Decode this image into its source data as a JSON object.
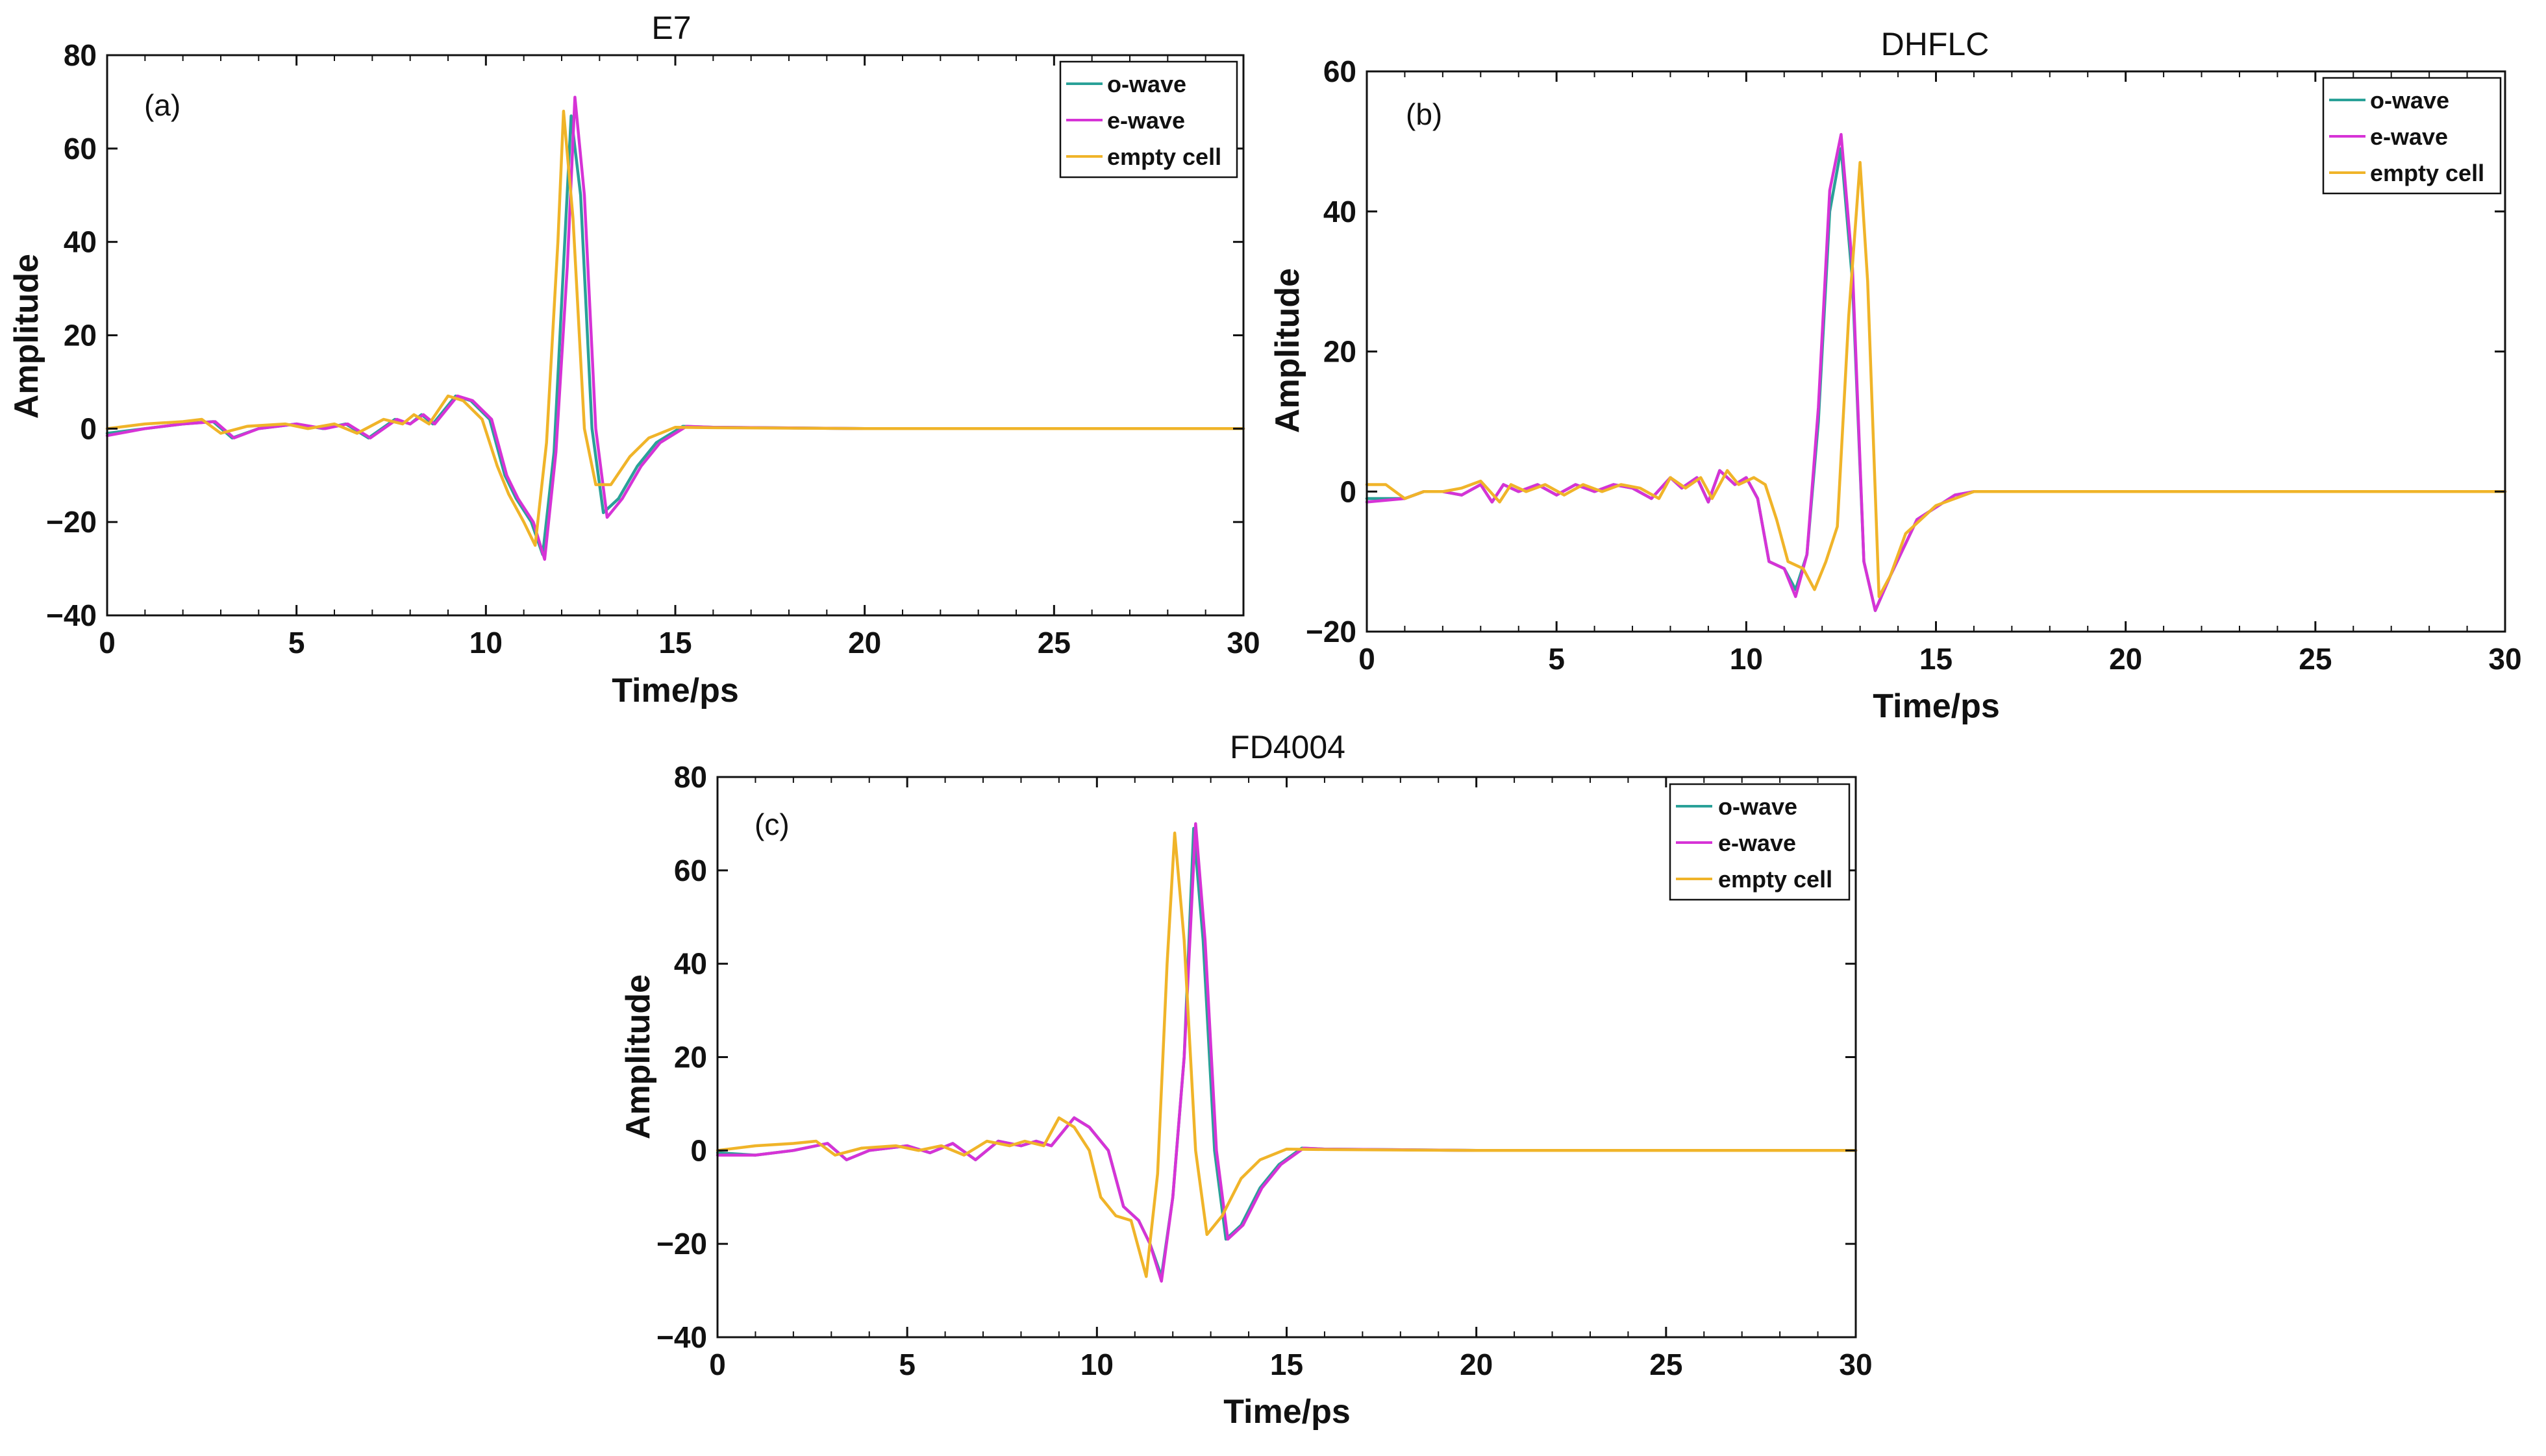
{
  "chart_data": [
    {
      "type": "line",
      "panel_label": "(a)",
      "title": "E7",
      "xlabel": "Time/ps",
      "ylabel": "Amplitude",
      "xlim": [
        0,
        30
      ],
      "ylim": [
        -40,
        80
      ],
      "xticks": [
        0,
        5,
        10,
        15,
        20,
        25,
        30
      ],
      "yticks": [
        -40,
        -20,
        0,
        20,
        40,
        60,
        80
      ],
      "xtick_labels": [
        "0",
        "5",
        "10",
        "15",
        "20",
        "25",
        "30"
      ],
      "ytick_labels": [
        "−40",
        "−20",
        "0",
        "20",
        "40",
        "60",
        "80"
      ],
      "legend_position": "top-right",
      "series": [
        {
          "name": "o-wave",
          "color": "#2aa198",
          "x": [
            0,
            1,
            2,
            2.8,
            3.3,
            4,
            5,
            5.7,
            6.3,
            6.9,
            7.6,
            8,
            8.3,
            8.6,
            9.2,
            9.6,
            10.1,
            10.5,
            10.8,
            11.2,
            11.5,
            11.8,
            12.05,
            12.25,
            12.5,
            12.8,
            13.1,
            13.5,
            14,
            14.5,
            15.2,
            16,
            20,
            25,
            30
          ],
          "y": [
            -1,
            0,
            1,
            1.5,
            -2,
            0,
            1,
            0,
            1,
            -2,
            2,
            1,
            3,
            1,
            7,
            6,
            2,
            -10,
            -15,
            -20,
            -27,
            -5,
            35,
            67,
            50,
            0,
            -18,
            -15,
            -8,
            -3,
            0.5,
            0.3,
            0,
            0,
            0
          ]
        },
        {
          "name": "e-wave",
          "color": "#d633d6",
          "x": [
            0,
            1,
            2,
            2.85,
            3.35,
            4,
            5,
            5.75,
            6.35,
            6.95,
            7.65,
            8,
            8.35,
            8.65,
            9.25,
            9.65,
            10.15,
            10.55,
            10.85,
            11.25,
            11.55,
            11.85,
            12.15,
            12.35,
            12.6,
            12.9,
            13.2,
            13.6,
            14.1,
            14.6,
            15.3,
            16,
            20,
            25,
            30
          ],
          "y": [
            -1.5,
            0,
            1,
            1.5,
            -2,
            0,
            1,
            0,
            1,
            -2,
            2,
            1,
            3,
            1,
            7,
            6,
            2,
            -10,
            -15,
            -20,
            -28,
            -5,
            35,
            71,
            50,
            0,
            -19,
            -15,
            -8,
            -3,
            0.5,
            0.3,
            0,
            0,
            0
          ]
        },
        {
          "name": "empty cell",
          "color": "#f0b429",
          "x": [
            0,
            1,
            2,
            2.5,
            3,
            3.7,
            4.7,
            5.3,
            6,
            6.6,
            7.3,
            7.8,
            8.1,
            8.5,
            9,
            9.4,
            9.9,
            10.3,
            10.6,
            11,
            11.3,
            11.6,
            11.9,
            12.05,
            12.3,
            12.6,
            12.9,
            13.3,
            13.8,
            14.3,
            15,
            16,
            20,
            25,
            30
          ],
          "y": [
            0,
            1,
            1.5,
            2,
            -1,
            0.5,
            1,
            0,
            1,
            -1,
            2,
            1,
            3,
            1,
            7,
            6,
            2,
            -8,
            -14,
            -20,
            -25,
            -3,
            40,
            68,
            45,
            0,
            -12,
            -12,
            -6,
            -2,
            0.3,
            0.2,
            0,
            0,
            0
          ]
        }
      ]
    },
    {
      "type": "line",
      "panel_label": "(b)",
      "title": "DHFLC",
      "xlabel": "Time/ps",
      "ylabel": "Amplitude",
      "xlim": [
        0,
        30
      ],
      "ylim": [
        -20,
        60
      ],
      "xticks": [
        0,
        5,
        10,
        15,
        20,
        25,
        30
      ],
      "yticks": [
        -20,
        0,
        20,
        40,
        60
      ],
      "xtick_labels": [
        "0",
        "5",
        "10",
        "15",
        "20",
        "25",
        "30"
      ],
      "ytick_labels": [
        "−20",
        "0",
        "20",
        "40",
        "60"
      ],
      "legend_position": "top-right",
      "series": [
        {
          "name": "o-wave",
          "color": "#2aa198",
          "x": [
            0,
            1,
            1.5,
            2,
            2.5,
            3,
            3.3,
            3.6,
            4,
            4.5,
            5,
            5.5,
            6,
            6.5,
            7,
            7.5,
            8,
            8.3,
            8.7,
            9,
            9.3,
            9.7,
            10,
            10.3,
            10.6,
            11,
            11.3,
            11.6,
            11.9,
            12.2,
            12.5,
            12.8,
            13.1,
            13.4,
            13.8,
            14.5,
            15.5,
            16,
            20,
            25,
            30
          ],
          "y": [
            -1,
            -1,
            0,
            0,
            -0.5,
            1,
            -1.5,
            1,
            0,
            1,
            -0.5,
            1,
            0,
            1,
            0.5,
            -1,
            2,
            0.5,
            2,
            -1.5,
            3,
            1,
            2,
            -1,
            -10,
            -11,
            -14,
            -9,
            10,
            40,
            49,
            30,
            -10,
            -17,
            -12,
            -4,
            -0.5,
            0,
            0,
            0,
            0
          ]
        },
        {
          "name": "e-wave",
          "color": "#d633d6",
          "x": [
            0,
            1,
            1.5,
            2,
            2.5,
            3,
            3.3,
            3.6,
            4,
            4.5,
            5,
            5.5,
            6,
            6.5,
            7,
            7.5,
            8,
            8.3,
            8.7,
            9,
            9.3,
            9.7,
            10,
            10.3,
            10.6,
            11,
            11.3,
            11.6,
            11.9,
            12.2,
            12.5,
            12.8,
            13.1,
            13.4,
            13.8,
            14.5,
            15.5,
            16,
            20,
            25,
            30
          ],
          "y": [
            -1.5,
            -1,
            0,
            0,
            -0.5,
            1,
            -1.5,
            1,
            0,
            1,
            -0.5,
            1,
            0,
            1,
            0.5,
            -1,
            2,
            0.5,
            2,
            -1.5,
            3,
            1,
            2,
            -1,
            -10,
            -11,
            -15,
            -9,
            12,
            43,
            51,
            32,
            -10,
            -17,
            -12,
            -4,
            -0.5,
            0,
            0,
            0,
            0
          ]
        },
        {
          "name": "empty cell",
          "color": "#f0b429",
          "x": [
            0,
            0.5,
            1,
            1.5,
            2,
            2.5,
            3,
            3.5,
            3.8,
            4.2,
            4.7,
            5.2,
            5.7,
            6.2,
            6.7,
            7.2,
            7.7,
            8,
            8.4,
            8.8,
            9.1,
            9.5,
            9.8,
            10.2,
            10.5,
            10.8,
            11.1,
            11.5,
            11.8,
            12.1,
            12.4,
            12.7,
            13,
            13.2,
            13.5,
            13.8,
            14.2,
            15,
            16,
            20,
            25,
            30
          ],
          "y": [
            1,
            1,
            -1,
            0,
            0,
            0.5,
            1.5,
            -1.5,
            1,
            0,
            1,
            -0.5,
            1,
            0,
            1,
            0.5,
            -1,
            2,
            0.5,
            2,
            -1,
            3,
            1,
            2,
            1,
            -4,
            -10,
            -11,
            -14,
            -10,
            -5,
            25,
            47,
            30,
            -15,
            -12,
            -6,
            -2,
            0,
            0,
            0,
            0
          ]
        }
      ]
    },
    {
      "type": "line",
      "panel_label": "(c)",
      "title": "FD4004",
      "xlabel": "Time/ps",
      "ylabel": "Amplitude",
      "xlim": [
        0,
        30
      ],
      "ylim": [
        -40,
        80
      ],
      "xticks": [
        0,
        5,
        10,
        15,
        20,
        25,
        30
      ],
      "yticks": [
        -40,
        -20,
        0,
        20,
        40,
        60,
        80
      ],
      "xtick_labels": [
        "0",
        "5",
        "10",
        "15",
        "20",
        "25",
        "30"
      ],
      "ytick_labels": [
        "−40",
        "−20",
        "0",
        "20",
        "40",
        "60",
        "80"
      ],
      "legend_position": "top-right",
      "series": [
        {
          "name": "o-wave",
          "color": "#2aa198",
          "x": [
            0,
            1,
            2,
            2.9,
            3.4,
            4,
            5,
            5.6,
            6.2,
            6.8,
            7.4,
            8,
            8.4,
            8.8,
            9.4,
            9.8,
            10.3,
            10.7,
            11.1,
            11.4,
            11.7,
            12,
            12.3,
            12.55,
            12.8,
            13.1,
            13.4,
            13.8,
            14.3,
            14.8,
            15.4,
            16,
            20,
            25,
            30
          ],
          "y": [
            -0.5,
            -1,
            0,
            1.5,
            -2,
            0,
            1,
            -0.5,
            1.5,
            -2,
            2,
            1,
            2,
            1,
            7,
            5,
            0,
            -12,
            -15,
            -20,
            -27,
            -10,
            20,
            69,
            45,
            0,
            -19,
            -16,
            -8,
            -3,
            0.5,
            0.3,
            0,
            0,
            0
          ]
        },
        {
          "name": "e-wave",
          "color": "#d633d6",
          "x": [
            0,
            1,
            2,
            2.9,
            3.4,
            4,
            5,
            5.6,
            6.2,
            6.8,
            7.4,
            8,
            8.4,
            8.8,
            9.4,
            9.8,
            10.3,
            10.7,
            11.1,
            11.4,
            11.7,
            12,
            12.3,
            12.6,
            12.85,
            13.15,
            13.45,
            13.85,
            14.35,
            14.85,
            15.45,
            16,
            20,
            25,
            30
          ],
          "y": [
            -1,
            -1,
            0,
            1.5,
            -2,
            0,
            1,
            -0.5,
            1.5,
            -2,
            2,
            1,
            2,
            1,
            7,
            5,
            0,
            -12,
            -15,
            -20,
            -28,
            -10,
            20,
            70,
            45,
            0,
            -19,
            -16,
            -8,
            -3,
            0.5,
            0.3,
            0,
            0,
            0
          ]
        },
        {
          "name": "empty cell",
          "color": "#f0b429",
          "x": [
            0,
            1,
            2,
            2.6,
            3.1,
            3.8,
            4.7,
            5.3,
            5.9,
            6.5,
            7.1,
            7.7,
            8.1,
            8.6,
            9,
            9.4,
            9.8,
            10.1,
            10.5,
            10.9,
            11.3,
            11.6,
            11.85,
            12.05,
            12.3,
            12.6,
            12.9,
            13.3,
            13.8,
            14.3,
            15,
            16,
            20,
            25,
            30
          ],
          "y": [
            0,
            1,
            1.5,
            2,
            -1,
            0.5,
            1,
            0,
            1,
            -1,
            2,
            1,
            2,
            1,
            7,
            5,
            0,
            -10,
            -14,
            -15,
            -27,
            -5,
            40,
            68,
            45,
            0,
            -18,
            -14,
            -6,
            -2,
            0.3,
            0.2,
            0,
            0,
            0
          ]
        }
      ]
    }
  ]
}
